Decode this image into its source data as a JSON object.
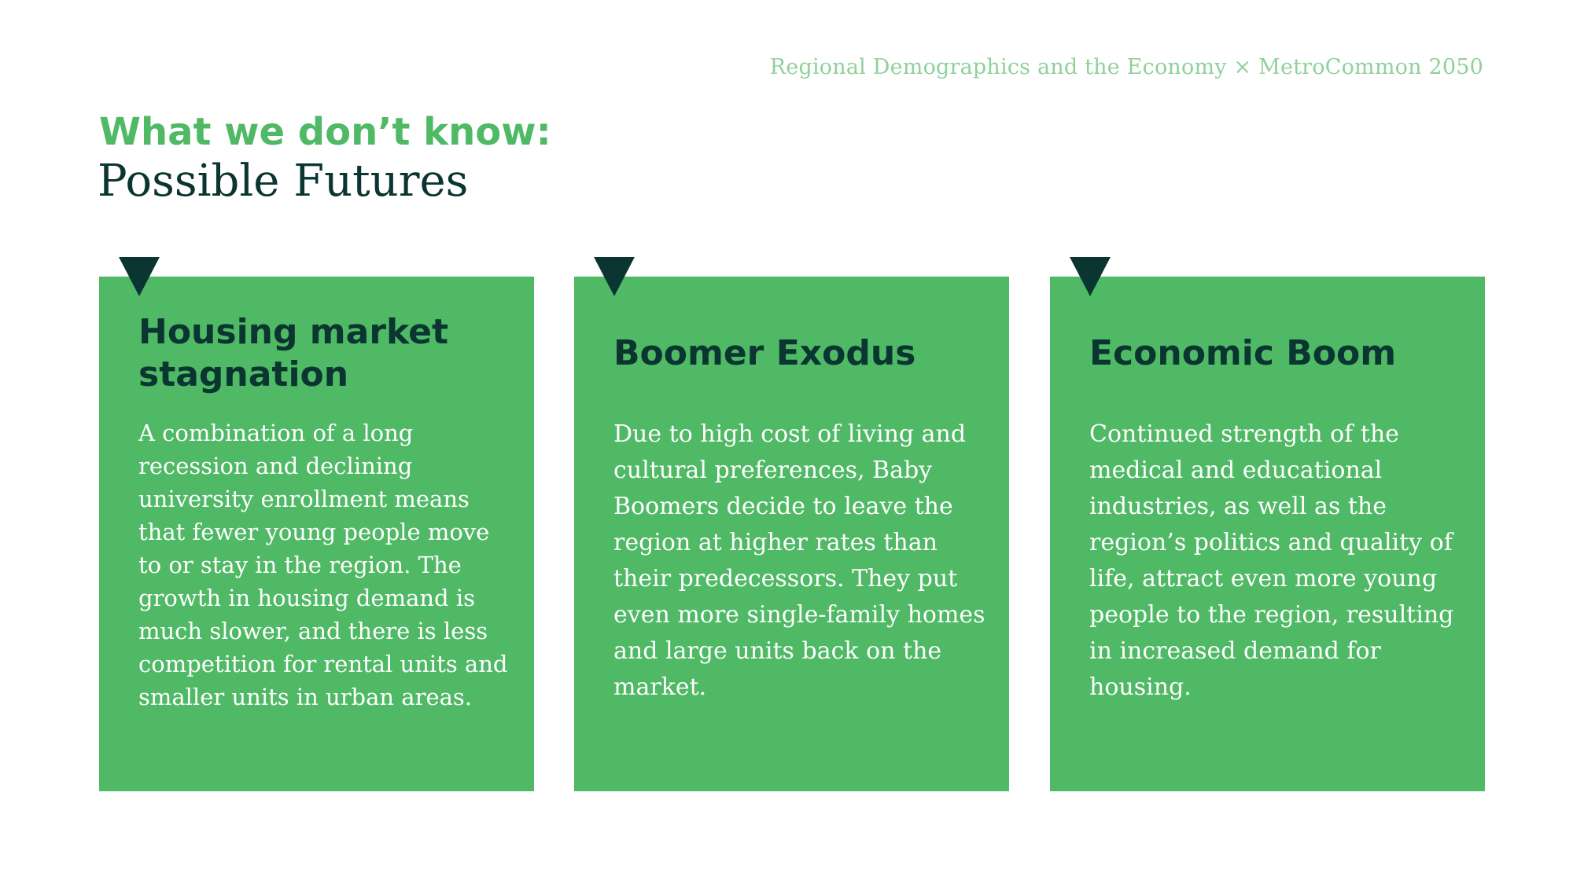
{
  "header": {
    "credit": "Regional Demographics and the Economy × MetroCommon 2050"
  },
  "heading": {
    "kicker": "What we don’t know:",
    "title": "Possible Futures"
  },
  "cards": [
    {
      "title": "Housing market stagnation",
      "body": "A combination of a long recession and declining university enrollment means that fewer young people move to or stay in the region. The growth in housing demand is much slower, and there is less competition for rental units and smaller units in urban areas."
    },
    {
      "title": "Boomer Exodus",
      "body": "Due to high cost of living and cultural preferences, Baby Boomers decide to leave the region at higher rates than their predecessors. They put even more single-family homes and large units back on the market."
    },
    {
      "title": "Economic Boom",
      "body": "Continued strength of the medical and educational industries, as well as the region’s politics and quality of life, attract even more young people to the region, resulting in increased demand for housing."
    }
  ],
  "colors": {
    "accent_green": "#4fb965",
    "dark_teal": "#0a3530",
    "light_green_text": "#8fd19a",
    "background": "#ffffff"
  }
}
